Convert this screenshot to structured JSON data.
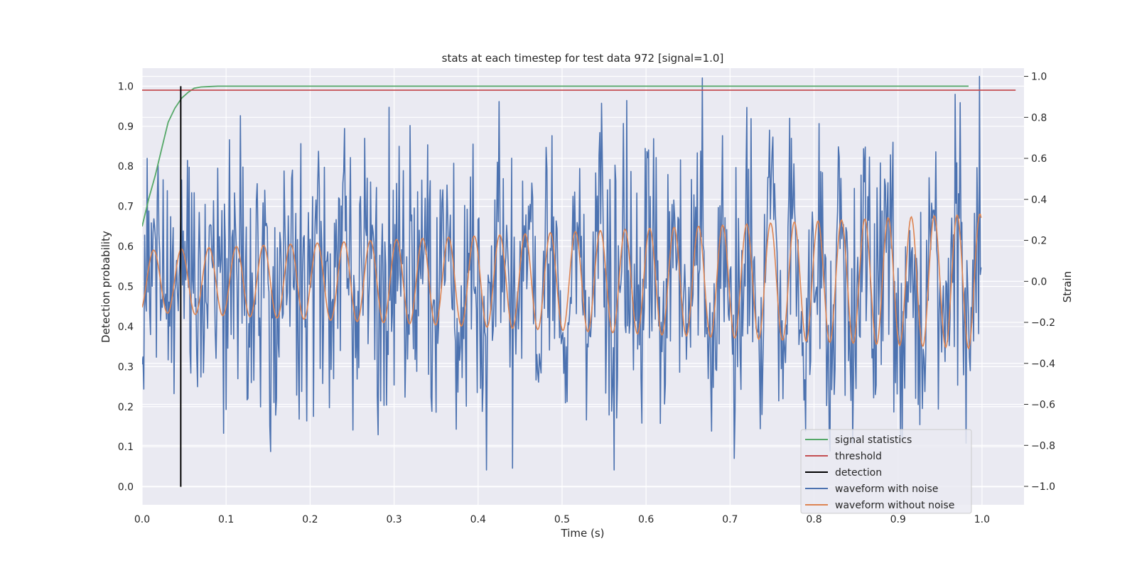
{
  "chart_data": {
    "type": "line",
    "title": "stats at each timestep for test data 972 [signal=1.0]",
    "xlabel": "Time (s)",
    "ylabel": "Detection probability",
    "y2label": "Strain",
    "xlim": [
      0.0,
      1.05
    ],
    "ylim": [
      -0.045,
      1.045
    ],
    "y2lim": [
      -1.09,
      1.04
    ],
    "xticks": [
      "0.0",
      "0.1",
      "0.2",
      "0.3",
      "0.4",
      "0.5",
      "0.6",
      "0.7",
      "0.8",
      "0.9",
      "1.0"
    ],
    "yticks": [
      "0.0",
      "0.1",
      "0.2",
      "0.3",
      "0.4",
      "0.5",
      "0.6",
      "0.7",
      "0.8",
      "0.9",
      "1.0"
    ],
    "y2ticks": [
      "−1.0",
      "−0.8",
      "−0.6",
      "−0.4",
      "−0.2",
      "0.0",
      "0.2",
      "0.4",
      "0.6",
      "0.8",
      "1.0"
    ],
    "grid": true,
    "legend_position": "lower-right",
    "legend": [
      {
        "label": "signal statistics",
        "color": "#55a868"
      },
      {
        "label": "threshold",
        "color": "#c44e52"
      },
      {
        "label": "detection",
        "color": "#000000"
      },
      {
        "label": "waveform with noise",
        "color": "#4c72b0"
      },
      {
        "label": "waveform without noise",
        "color": "#dd8452"
      }
    ],
    "signal_statistics": {
      "axis": "left",
      "color": "#55a868",
      "x": [
        0.0,
        0.008,
        0.016,
        0.024,
        0.031,
        0.039,
        0.047,
        0.055,
        0.062,
        0.07,
        0.08,
        0.09,
        0.1,
        0.15,
        0.2,
        0.3,
        0.4,
        0.5,
        0.6,
        0.7,
        0.8,
        0.9,
        0.984
      ],
      "values": [
        0.65,
        0.72,
        0.78,
        0.85,
        0.91,
        0.945,
        0.97,
        0.985,
        0.995,
        0.998,
        0.999,
        1.0,
        1.0,
        1.0,
        1.0,
        1.0,
        1.0,
        1.0,
        1.0,
        1.0,
        1.0,
        1.0,
        1.0
      ]
    },
    "threshold": {
      "axis": "left",
      "color": "#c44e52",
      "value": 0.99,
      "x_range": [
        0.0,
        1.04
      ]
    },
    "detection": {
      "axis": "left",
      "color": "#000000",
      "x": 0.046,
      "y_range": [
        0.0,
        1.0
      ]
    },
    "waveform_with_noise": {
      "axis": "right",
      "color": "#4c72b0",
      "x_range": [
        0.0,
        0.999
      ],
      "samples": 1000,
      "noise_std": 0.3,
      "range": [
        -0.92,
        1.0
      ],
      "approximate": true
    },
    "waveform_without_noise": {
      "axis": "right",
      "color": "#dd8452",
      "x_range": [
        0.0,
        0.999
      ],
      "samples": 1000,
      "frequency_hz_start": 30,
      "frequency_hz_end": 37,
      "amplitude_start": 0.15,
      "amplitude_end": 0.33,
      "approximate": true
    }
  }
}
